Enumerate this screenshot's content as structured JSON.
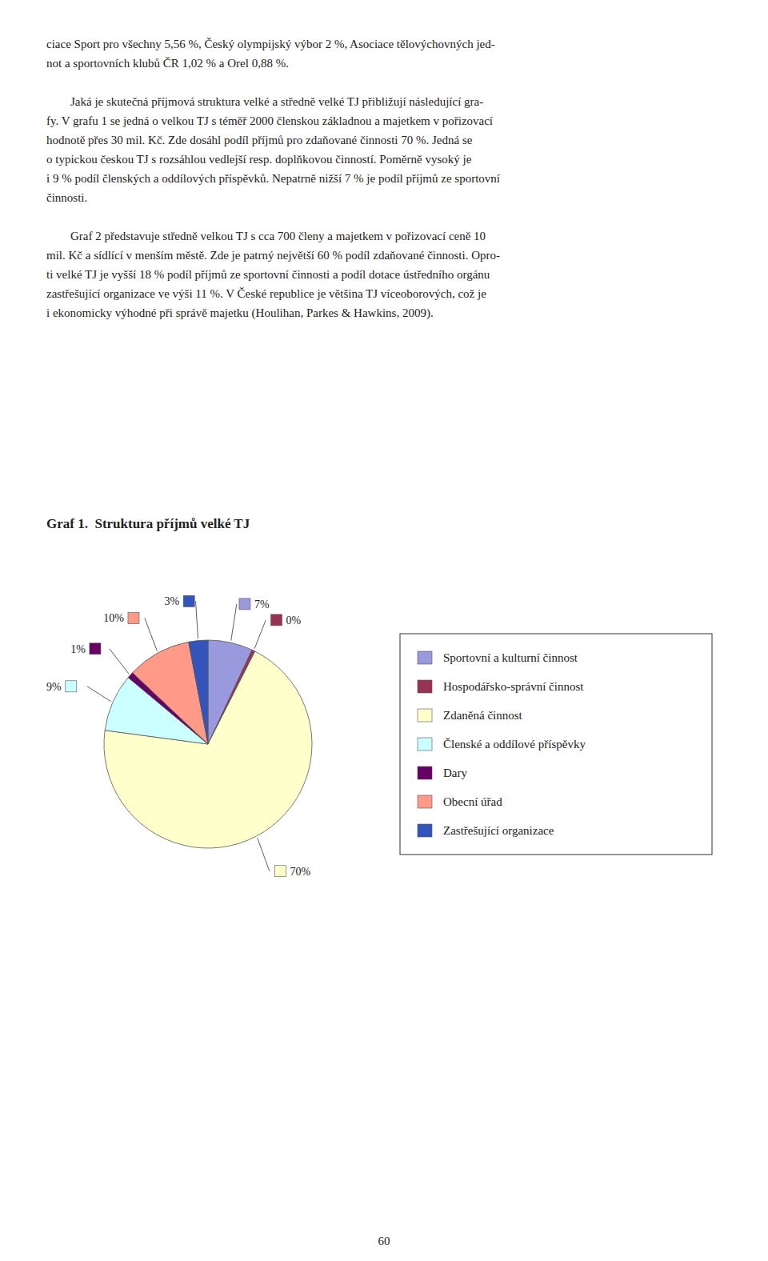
{
  "chart_data": {
    "type": "pie",
    "title": "Graf 1.  Struktura příjmů velké TJ",
    "categories": [
      "Sportovní a kulturní činnost",
      "Hospodářsko-správní činnost",
      "Zdaněná činnost",
      "Členské a oddílové příspěvky",
      "Dary",
      "Obecní úřad",
      "Zastřešující organizace"
    ],
    "values": [
      7,
      0.5,
      70,
      9,
      1,
      10,
      3
    ],
    "value_labels": [
      "7%",
      "0%",
      "70%",
      "9%",
      "1%",
      "10%",
      "3%"
    ],
    "colors": [
      "#9999dd",
      "#993355",
      "#ffffcc",
      "#ccffff",
      "#660066",
      "#ff9988",
      "#3355bb"
    ],
    "data_labels": true,
    "legend": "right"
  },
  "body_text": [
    [
      "ciace Sport pro všechny 5,56 %, Český olympijský výbor 2 %, Asociace tělovýchovných jed-",
      "not a sportovních klubů ČR 1,02 % a Orel 0,88 %."
    ],
    [
      "        Jaká je skutečná příjmová struktura velké a středně velké TJ přibližují následující gra-",
      "fy. V grafu 1 se jedná o velkou TJ s téměř 2000 členskou základnou a majetkem v pořizovací",
      "hodnotě přes 30 mil. Kč. Zde dosáhl podíl příjmů pro zdaňované činnosti 70 %. Jedná se",
      "o typickou českou TJ s rozsáhlou vedlejší resp. doplňkovou činností. Poměrně vysoký je",
      "i 9 % podíl členských a oddílových příspěvků. Nepatrně nižší 7 % je podíl příjmů ze sportovní",
      "činnosti."
    ],
    [
      "        Graf 2 představuje středně velkou TJ s cca 700 členy a majetkem v pořizovací ceně 10",
      "mil. Kč a sídlící v menším městě. Zde je patrný největší 60 % podíl zdaňované činnosti. Opro-",
      "ti velké TJ je vyšší 18 % podíl příjmů ze sportovní činnosti a podíl dotace ústředního orgánu",
      "zastřešující organizace ve výši 11 %. V České republice je většina TJ víceoborových, což je",
      "i ekonomicky výhodné při správě majetku (Houlihan, Parkes & Hawkins, 2009)."
    ]
  ],
  "page_number": "60"
}
